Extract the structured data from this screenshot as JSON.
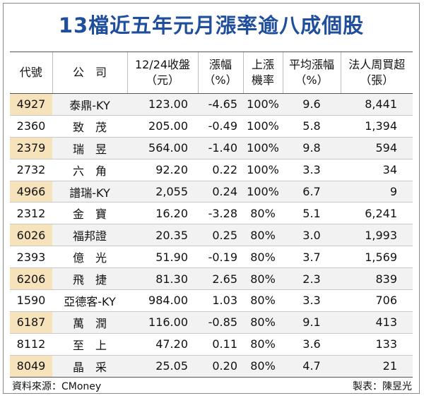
{
  "title": "13檔近五年元月漲率逾八成個股",
  "headers": {
    "code": "代號",
    "company": "公　司",
    "close_l1": "12/24收盤",
    "close_l2": "（元）",
    "change_l1": "漲幅",
    "change_l2": "（%）",
    "prob_l1": "上漲",
    "prob_l2": "機率",
    "avg_l1": "平均漲幅",
    "avg_l2": "（%）",
    "inst_l1": "法人周買超",
    "inst_l2": "（張）"
  },
  "rows": [
    {
      "code": "4927",
      "name": "泰鼎-KY",
      "close": "123.00",
      "change": "-4.65",
      "prob": "100%",
      "avg": "9.6",
      "inst": "8,441"
    },
    {
      "code": "2360",
      "name": "致　茂",
      "close": "205.00",
      "change": "-0.49",
      "prob": "100%",
      "avg": "5.8",
      "inst": "1,394"
    },
    {
      "code": "2379",
      "name": "瑞　昱",
      "close": "564.00",
      "change": "-1.40",
      "prob": "100%",
      "avg": "9.8",
      "inst": "594"
    },
    {
      "code": "2732",
      "name": "六　角",
      "close": "92.20",
      "change": "0.22",
      "prob": "100%",
      "avg": "3.3",
      "inst": "34"
    },
    {
      "code": "4966",
      "name": "譜瑞-KY",
      "close": "2,055",
      "change": "0.24",
      "prob": "100%",
      "avg": "6.7",
      "inst": "9"
    },
    {
      "code": "2312",
      "name": "金　寶",
      "close": "16.20",
      "change": "-3.28",
      "prob": "80%",
      "avg": "5.1",
      "inst": "6,241"
    },
    {
      "code": "6026",
      "name": "福邦證",
      "close": "20.35",
      "change": "0.25",
      "prob": "80%",
      "avg": "3.0",
      "inst": "1,993"
    },
    {
      "code": "2393",
      "name": "億　光",
      "close": "51.90",
      "change": "-0.19",
      "prob": "80%",
      "avg": "3.7",
      "inst": "1,569"
    },
    {
      "code": "6206",
      "name": "飛　捷",
      "close": "81.30",
      "change": "2.65",
      "prob": "80%",
      "avg": "2.3",
      "inst": "839"
    },
    {
      "code": "1590",
      "name": "亞德客-KY",
      "close": "984.00",
      "change": "1.03",
      "prob": "80%",
      "avg": "3.3",
      "inst": "706"
    },
    {
      "code": "6187",
      "name": "萬　潤",
      "close": "116.00",
      "change": "-0.85",
      "prob": "80%",
      "avg": "9.1",
      "inst": "413"
    },
    {
      "code": "8112",
      "name": "至　上",
      "close": "47.20",
      "change": "0.11",
      "prob": "80%",
      "avg": "3.6",
      "inst": "133"
    },
    {
      "code": "8049",
      "name": "晶　采",
      "close": "25.05",
      "change": "0.20",
      "prob": "80%",
      "avg": "4.7",
      "inst": "21"
    }
  ],
  "footer": {
    "source": "資料來源：CMoney",
    "maker": "製表：陳昱光"
  },
  "colors": {
    "title": "#1f4e9c",
    "code_highlight": "#f6e3bb",
    "row_shade": "#f2f2f2"
  }
}
